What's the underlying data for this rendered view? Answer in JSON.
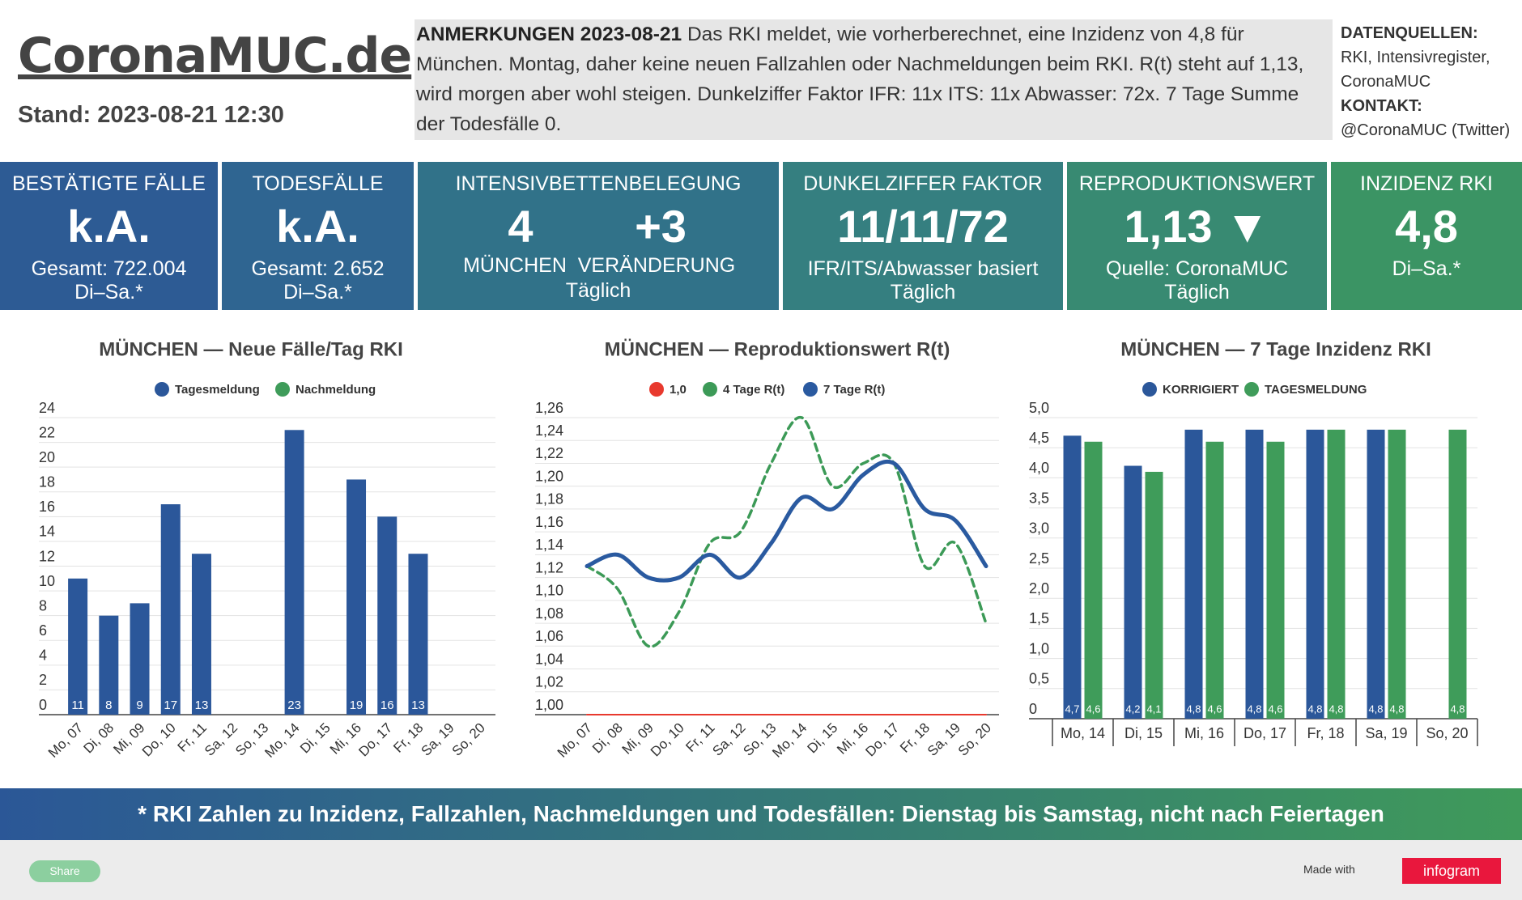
{
  "header": {
    "title": "CoronaMUC.de",
    "stand": "Stand: 2023-08-21 12:30"
  },
  "notes": {
    "heading": "ANMERKUNGEN 2023-08-21",
    "text": "Das RKI meldet, wie vorherberechnet, eine Inzidenz von 4,8 für München. Montag, daher keine neuen Fallzahlen oder Nachmeldungen beim RKI. R(t) steht auf 1,13, wird morgen aber wohl steigen. Dunkelziffer Faktor IFR: 11x ITS: 11x Abwasser: 72x. 7 Tage Summe der Todesfälle 0."
  },
  "sources": {
    "heading": "DATENQUELLEN:",
    "text": "RKI, Intensivregister, CoronaMUC",
    "contact_heading": "KONTAKT:",
    "contact": "@CoronaMUC (Twitter)"
  },
  "kpis": [
    {
      "title": "BESTÄTIGTE FÄLLE",
      "value": "k.A.",
      "lines": [
        "Gesamt: 722.004",
        "Di–Sa.*"
      ]
    },
    {
      "title": "TODESFÄLLE",
      "value": "k.A.",
      "lines": [
        "Gesamt: 2.652",
        "Di–Sa.*"
      ]
    },
    {
      "title": "INTENSIVBETTENBELEGUNG",
      "columns": [
        {
          "value": "4",
          "label": "MÜNCHEN"
        },
        {
          "value": "+3",
          "label": "VERÄNDERUNG"
        }
      ],
      "lines": [
        "Täglich"
      ]
    },
    {
      "title": "DUNKELZIFFER FAKTOR",
      "value": "11/11/72",
      "lines": [
        "IFR/ITS/Abwasser basiert",
        "Täglich"
      ]
    },
    {
      "title": "REPRODUKTIONSWERT",
      "value": "1,13 ▼",
      "lines": [
        "Quelle: CoronaMUC",
        "Täglich"
      ]
    },
    {
      "title": "INZIDENZ RKI",
      "value": "4,8",
      "lines": [
        "Di–Sa.*"
      ]
    }
  ],
  "chart_data": [
    {
      "type": "bar",
      "title": "MÜNCHEN — Neue Fälle/Tag RKI",
      "stacked": true,
      "categories": [
        "Mo, 07",
        "Di, 08",
        "Mi, 09",
        "Do, 10",
        "Fr, 11",
        "Sa, 12",
        "So, 13",
        "Mo, 14",
        "Di, 15",
        "Mi, 16",
        "Do, 17",
        "Fr, 18",
        "Sa, 19",
        "So, 20"
      ],
      "series": [
        {
          "name": "Tagesmeldung",
          "color": "#2b579a",
          "values": [
            11,
            8,
            9,
            17,
            13,
            null,
            null,
            23,
            null,
            19,
            16,
            13,
            null,
            null
          ]
        },
        {
          "name": "Nachmeldung",
          "color": "#3f9c5a",
          "values": [
            null,
            null,
            null,
            null,
            null,
            null,
            null,
            null,
            null,
            null,
            null,
            null,
            null,
            null
          ]
        }
      ],
      "ylim": [
        0,
        24
      ],
      "yticks": [
        0,
        2,
        4,
        6,
        8,
        10,
        12,
        14,
        16,
        18,
        20,
        22,
        24
      ],
      "grid": true
    },
    {
      "type": "line",
      "title": "MÜNCHEN — Reproduktionswert R(t)",
      "categories": [
        "Mo, 07",
        "Di, 08",
        "Mi, 09",
        "Do, 10",
        "Fr, 11",
        "Sa, 12",
        "So, 13",
        "Mo, 14",
        "Di, 15",
        "Mi, 16",
        "Do, 17",
        "Fr, 18",
        "Sa, 19",
        "So, 20"
      ],
      "series": [
        {
          "name": "1,0",
          "color": "#e8392e",
          "values": [
            1,
            1,
            1,
            1,
            1,
            1,
            1,
            1,
            1,
            1,
            1,
            1,
            1,
            1
          ]
        },
        {
          "name": "4 Tage R(t)",
          "color": "#3c9a57",
          "dashed": true,
          "values": [
            1.13,
            1.11,
            1.06,
            1.09,
            1.15,
            1.16,
            1.22,
            1.26,
            1.2,
            1.22,
            1.22,
            1.13,
            1.15,
            1.08
          ]
        },
        {
          "name": "7 Tage R(t)",
          "color": "#2a5aa0",
          "values": [
            1.13,
            1.14,
            1.12,
            1.12,
            1.14,
            1.12,
            1.15,
            1.19,
            1.18,
            1.21,
            1.22,
            1.18,
            1.17,
            1.13
          ]
        }
      ],
      "ylim": [
        1,
        1.26
      ],
      "yticks": [
        {
          "value": 1,
          "label": "1,00"
        },
        {
          "value": 1.02,
          "label": "1,02"
        },
        {
          "value": 1.04,
          "label": "1,04"
        },
        {
          "value": 1.06,
          "label": "1,06"
        },
        {
          "value": 1.08,
          "label": "1,08"
        },
        {
          "value": 1.1,
          "label": "1,10"
        },
        {
          "value": 1.12,
          "label": "1,12"
        },
        {
          "value": 1.14,
          "label": "1,14"
        },
        {
          "value": 1.16,
          "label": "1,16"
        },
        {
          "value": 1.18,
          "label": "1,18"
        },
        {
          "value": 1.2,
          "label": "1,20"
        },
        {
          "value": 1.22,
          "label": "1,22"
        },
        {
          "value": 1.24,
          "label": "1,24"
        },
        {
          "value": 1.26,
          "label": "1,26"
        }
      ],
      "grid": true
    },
    {
      "type": "bar",
      "title": "MÜNCHEN — 7 Tage Inzidenz RKI",
      "categories": [
        "Mo, 14",
        "Di, 15",
        "Mi, 16",
        "Do, 17",
        "Fr, 18",
        "Sa, 19",
        "So, 20"
      ],
      "series": [
        {
          "name": "KORRIGIERT",
          "color": "#2b579a",
          "values": [
            4.7,
            4.2,
            4.8,
            4.8,
            4.8,
            4.8,
            null
          ],
          "value_labels": [
            "4,7",
            "4,2",
            "4,8",
            "4,8",
            "4,8",
            "4,8",
            null
          ]
        },
        {
          "name": "TAGESMELDUNG",
          "color": "#3f9c5a",
          "values": [
            4.6,
            4.1,
            4.6,
            4.6,
            4.8,
            4.8,
            4.8
          ],
          "value_labels": [
            "4,6",
            "4,1",
            "4,6",
            "4,6",
            "4,8",
            "4,8",
            "4,8"
          ]
        }
      ],
      "ylim": [
        0,
        5
      ],
      "yticks": [
        0,
        {
          "value": 0.5,
          "label": "0,5"
        },
        {
          "value": 1,
          "label": "1,0"
        },
        {
          "value": 1.5,
          "label": "1,5"
        },
        {
          "value": 2,
          "label": "2,0"
        },
        {
          "value": 2.5,
          "label": "2,5"
        },
        {
          "value": 3,
          "label": "3,0"
        },
        {
          "value": 3.5,
          "label": "3,5"
        },
        {
          "value": 4,
          "label": "4,0"
        },
        {
          "value": 4.5,
          "label": "4,5"
        },
        {
          "value": 5,
          "label": "5,0"
        }
      ],
      "grid": true
    }
  ],
  "footer": {
    "note": "* RKI Zahlen zu Inzidenz, Fallzahlen, Nachmeldungen und Todesfällen: Dienstag bis Samstag, nicht nach Feiertagen",
    "share": "Share",
    "made_with": "Made with",
    "brand": "infogram"
  }
}
